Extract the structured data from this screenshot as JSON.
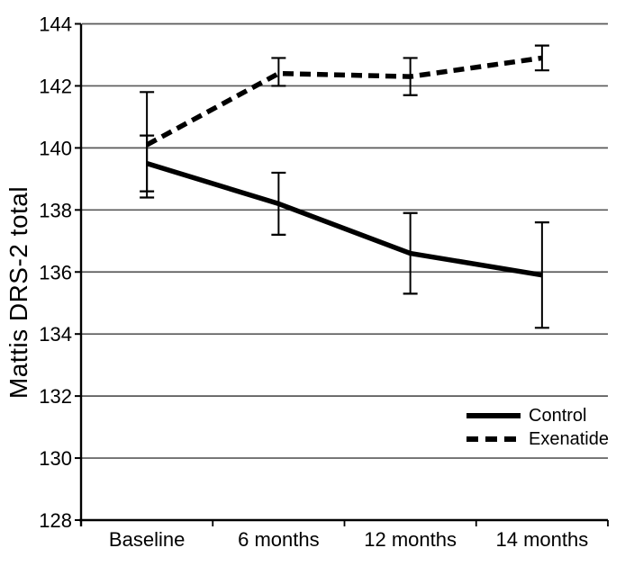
{
  "chart_data": {
    "type": "line",
    "title": "",
    "xlabel": "",
    "ylabel": "Mattis DRS-2 total",
    "categories": [
      "Baseline",
      "6 months",
      "12 months",
      "14 months"
    ],
    "series": [
      {
        "name": "Control",
        "line_style": "solid",
        "values": [
          139.5,
          138.2,
          136.6,
          135.9
        ],
        "error_low": [
          138.6,
          137.2,
          135.3,
          134.2
        ],
        "error_high": [
          140.4,
          139.2,
          137.9,
          137.6
        ]
      },
      {
        "name": "Exenatide",
        "line_style": "dashed",
        "values": [
          140.1,
          142.4,
          142.3,
          142.9
        ],
        "error_low": [
          138.4,
          142.0,
          141.7,
          142.5
        ],
        "error_high": [
          141.8,
          142.9,
          142.9,
          143.3
        ]
      }
    ],
    "ylim": [
      128,
      144
    ],
    "yticks": [
      128,
      130,
      132,
      134,
      136,
      138,
      140,
      142,
      144
    ],
    "grid": true,
    "legend_position": "inside-bottom-right",
    "colors": {
      "line": "#000000",
      "grid": "#595959",
      "axis": "#000000",
      "text": "#000000",
      "background": "#ffffff"
    }
  }
}
